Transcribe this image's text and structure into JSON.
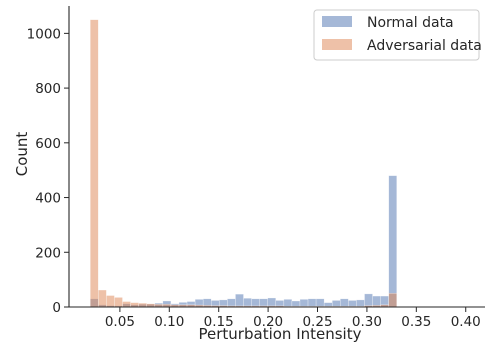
{
  "chart_data": {
    "type": "histogram",
    "title": "",
    "xlabel": "Perturbation Intensity",
    "ylabel": "Count",
    "xlim": [
      -0.0015,
      0.4195
    ],
    "ylim": [
      0,
      1100
    ],
    "xticks": [
      0.05,
      0.1,
      0.15,
      0.2,
      0.25,
      0.3,
      0.35,
      0.4
    ],
    "xtick_labels": [
      "0.05",
      "0.10",
      "0.15",
      "0.20",
      "0.25",
      "0.30",
      "0.35",
      "0.40"
    ],
    "yticks": [
      0,
      200,
      400,
      600,
      800,
      1000
    ],
    "ytick_labels": [
      "0",
      "200",
      "400",
      "600",
      "800",
      "1000"
    ],
    "bin_start": 0.02,
    "bin_width": 0.0081633,
    "grid": false,
    "legend_position": "top-right",
    "series": [
      {
        "name": "Normal data",
        "color": "#4c72b0",
        "alpha": 0.5,
        "values": [
          30,
          8,
          5,
          4,
          12,
          8,
          10,
          10,
          14,
          22,
          12,
          17,
          20,
          28,
          30,
          24,
          26,
          30,
          47,
          32,
          30,
          30,
          33,
          24,
          28,
          22,
          28,
          30,
          30,
          16,
          24,
          30,
          24,
          26,
          48,
          40,
          40,
          480
        ]
      },
      {
        "name": "Adversarial data",
        "color": "#dd8452",
        "alpha": 0.5,
        "values": [
          1050,
          62,
          42,
          35,
          20,
          16,
          14,
          12,
          10,
          10,
          8,
          8,
          8,
          7,
          6,
          5,
          5,
          4,
          4,
          4,
          4,
          4,
          4,
          4,
          3,
          3,
          3,
          3,
          3,
          3,
          3,
          3,
          3,
          3,
          5,
          6,
          8,
          50
        ]
      }
    ]
  }
}
